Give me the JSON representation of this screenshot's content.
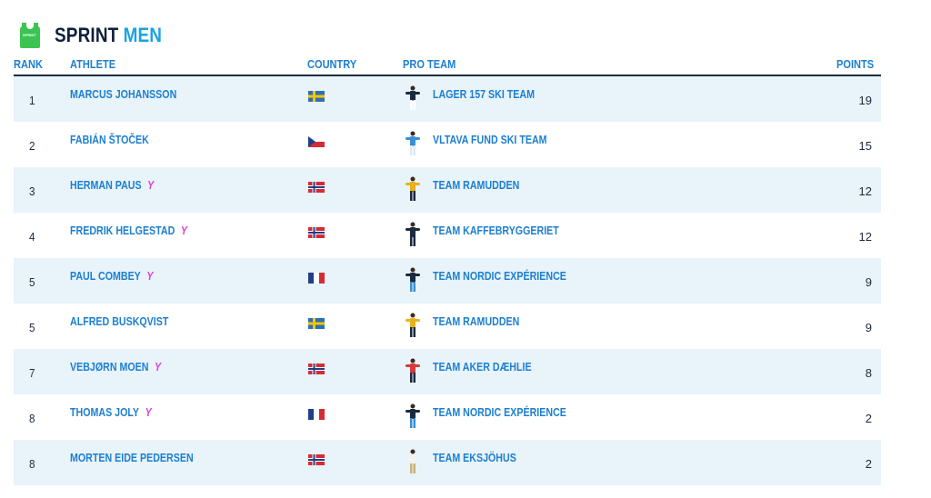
{
  "header": {
    "title_part1": "SPRINT",
    "title_part2": "MEN",
    "icon": "green-jersey-icon",
    "jersey_text": "SPRINT"
  },
  "columns": {
    "rank": "RANK",
    "athlete": "ATHLETE",
    "country": "COUNTRY",
    "team": "PRO TEAM",
    "points": "POINTS"
  },
  "colors": {
    "accent": "#1d7fd0",
    "title_dark": "#0f1f3a",
    "title_light": "#1aa3e0",
    "row_alt": "#e8f3fa",
    "young_marker": "#e23fd2"
  },
  "rows": [
    {
      "rank": "1",
      "athlete": "MARCUS JOHANSSON",
      "young": false,
      "young_mark": "",
      "country": "sweden",
      "team": "LAGER 157 SKI TEAM",
      "kit": [
        "#1b2a3f",
        "#ffffff"
      ],
      "points": "19"
    },
    {
      "rank": "2",
      "athlete": "FABIÁN ŠTOČEK",
      "young": false,
      "young_mark": "",
      "country": "czechia",
      "team": "VLTAVA FUND SKI TEAM",
      "kit": [
        "#3a8fd0",
        "#dfe8f2"
      ],
      "points": "15"
    },
    {
      "rank": "3",
      "athlete": "HERMAN PAUS",
      "young": true,
      "young_mark": "Y",
      "country": "norway",
      "team": "TEAM RAMUDDEN",
      "kit": [
        "#e8b21e",
        "#1b2a3f"
      ],
      "points": "12"
    },
    {
      "rank": "4",
      "athlete": "FREDRIK HELGESTAD",
      "young": true,
      "young_mark": "Y",
      "country": "norway",
      "team": "TEAM KAFFEBRYGGERIET",
      "kit": [
        "#1b2a3f",
        "#1b2a3f"
      ],
      "points": "12"
    },
    {
      "rank": "5",
      "athlete": "PAUL COMBEY",
      "young": true,
      "young_mark": "Y",
      "country": "france",
      "team": "TEAM NORDIC EXPÉRIENCE",
      "kit": [
        "#1b2a3f",
        "#3a8fd0"
      ],
      "points": "9"
    },
    {
      "rank": "5",
      "athlete": "ALFRED BUSKQVIST",
      "young": false,
      "young_mark": "",
      "country": "sweden",
      "team": "TEAM RAMUDDEN",
      "kit": [
        "#e8b21e",
        "#1b2a3f"
      ],
      "points": "9"
    },
    {
      "rank": "7",
      "athlete": "VEBJØRN MOEN",
      "young": true,
      "young_mark": "Y",
      "country": "norway",
      "team": "TEAM AKER DÆHLIE",
      "kit": [
        "#d63a3a",
        "#1b2a3f"
      ],
      "points": "8"
    },
    {
      "rank": "8",
      "athlete": "THOMAS JOLY",
      "young": true,
      "young_mark": "Y",
      "country": "france",
      "team": "TEAM NORDIC EXPÉRIENCE",
      "kit": [
        "#1b2a3f",
        "#3a8fd0"
      ],
      "points": "2"
    },
    {
      "rank": "8",
      "athlete": "MORTEN EIDE PEDERSEN",
      "young": false,
      "young_mark": "",
      "country": "norway",
      "team": "TEAM EKSJÖHUS",
      "kit": [
        "#f2f2f2",
        "#c9b27a"
      ],
      "points": "2"
    }
  ]
}
